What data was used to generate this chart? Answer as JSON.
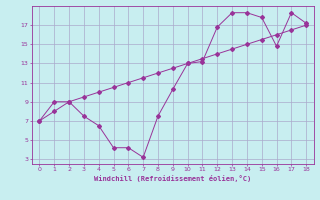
{
  "xlabel": "Windchill (Refroidissement éolien,°C)",
  "xlim": [
    -0.5,
    18.5
  ],
  "ylim": [
    2.5,
    19
  ],
  "xticks": [
    0,
    1,
    2,
    3,
    4,
    5,
    6,
    7,
    8,
    9,
    10,
    11,
    12,
    13,
    14,
    15,
    16,
    17,
    18
  ],
  "yticks": [
    3,
    5,
    7,
    9,
    11,
    13,
    15,
    17
  ],
  "background_color": "#c8eef0",
  "line_color": "#993399",
  "grid_color": "#aaaacc",
  "line1_x": [
    0,
    1,
    2,
    3,
    4,
    5,
    6,
    7,
    8,
    9,
    10,
    11,
    12,
    13,
    14,
    15,
    16,
    17,
    18
  ],
  "line1_y": [
    7,
    9,
    9,
    7.5,
    6.5,
    4.2,
    4.2,
    3.2,
    7.5,
    10.3,
    13,
    13.2,
    16.8,
    18.3,
    18.3,
    17.8,
    14.8,
    18.3,
    17.2
  ],
  "line2_x": [
    0,
    1,
    2,
    3,
    4,
    5,
    6,
    7,
    8,
    9,
    10,
    11,
    12,
    13,
    14,
    15,
    16,
    17,
    18
  ],
  "line2_y": [
    7,
    8,
    9,
    9.5,
    10,
    10.5,
    11,
    11.5,
    12,
    12.5,
    13,
    13.5,
    14,
    14.5,
    15,
    15.5,
    16,
    16.5,
    17
  ]
}
